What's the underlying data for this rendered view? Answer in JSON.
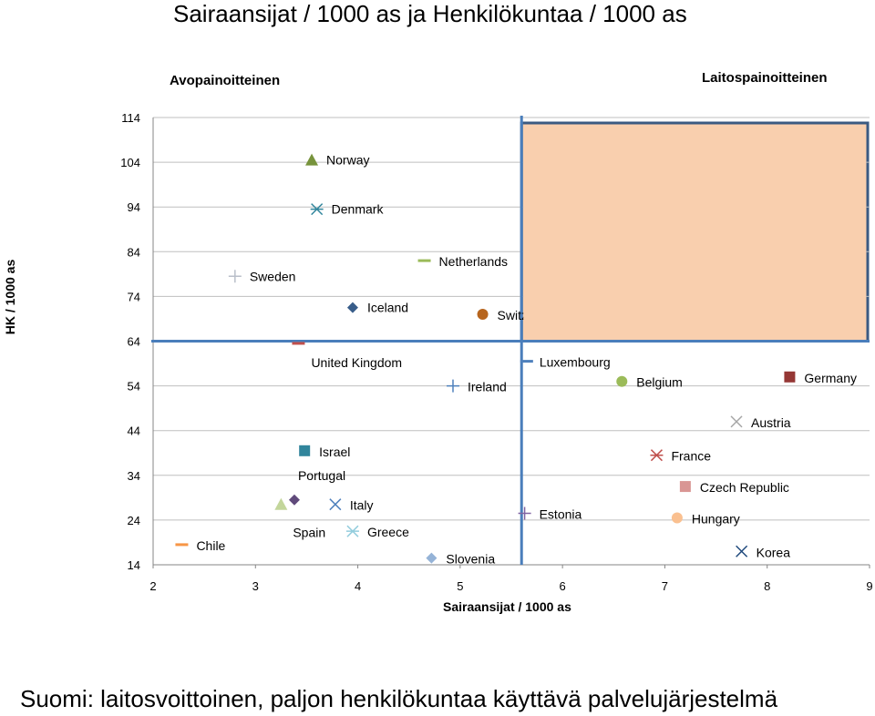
{
  "title": "Sairaansijat / 1000 as ja Henkilökuntaa / 1000 as",
  "footer": "Suomi: laitosvoittoinen, paljon henkilökuntaa käyttävä palvelujärjestelmä",
  "chart_data": {
    "type": "scatter",
    "xlabel": "Sairaansijat / 1000 as",
    "ylabel": "HK / 1000 as",
    "region_labels": {
      "left": "Avopainoitteinen",
      "right": "Laitospainoitteinen"
    },
    "xlim": [
      2,
      9
    ],
    "ylim": [
      14,
      114
    ],
    "x_ticks": [
      2,
      3,
      4,
      5,
      6,
      7,
      8,
      9
    ],
    "y_ticks": [
      14,
      24,
      34,
      44,
      54,
      64,
      74,
      84,
      94,
      104,
      114
    ],
    "grid": "horizontal",
    "divider": {
      "x": 5.6,
      "y": 64
    },
    "highlight_region": {
      "x": [
        5.6,
        9
      ],
      "y": [
        64,
        114
      ],
      "color": "#F9CFAE",
      "border": "#3B5A82"
    },
    "points": [
      {
        "label": "Norway",
        "x": 3.55,
        "y": 104.5,
        "marker": "triangle",
        "color": "#77933C"
      },
      {
        "label": "Denmark",
        "x": 3.6,
        "y": 93.5,
        "marker": "asterisk",
        "color": "#31859C"
      },
      {
        "label": "Netherlands",
        "x": 4.65,
        "y": 82,
        "marker": "dash",
        "color": "#9BBB59"
      },
      {
        "label": "Sweden",
        "x": 2.8,
        "y": 78.5,
        "marker": "plus",
        "color": "#B9BFC9"
      },
      {
        "label": "Iceland",
        "x": 3.95,
        "y": 71.5,
        "marker": "diamond",
        "color": "#385D8A"
      },
      {
        "label": "Switzerland",
        "x": 5.22,
        "y": 70,
        "marker": "circle",
        "color": "#B7651E"
      },
      {
        "label": "United Kingdom",
        "x": 3.42,
        "y": 63.5,
        "marker": "dash",
        "color": "#C0504D"
      },
      {
        "label": "Luxembourg",
        "x": 5.65,
        "y": 59.5,
        "marker": "dash",
        "color": "#4F81BD"
      },
      {
        "label": "Ireland",
        "x": 4.93,
        "y": 54,
        "marker": "plus",
        "color": "#4F81BD"
      },
      {
        "label": "Belgium",
        "x": 6.58,
        "y": 55,
        "marker": "circle",
        "color": "#9BBB59"
      },
      {
        "label": "Germany",
        "x": 8.22,
        "y": 56,
        "marker": "square",
        "color": "#953735"
      },
      {
        "label": "Austria",
        "x": 7.7,
        "y": 46,
        "marker": "x",
        "color": "#A6A6A6"
      },
      {
        "label": "Israel",
        "x": 3.48,
        "y": 39.5,
        "marker": "square",
        "color": "#31859C"
      },
      {
        "label": "France",
        "x": 6.92,
        "y": 38.5,
        "marker": "asterisk",
        "color": "#C0504D"
      },
      {
        "label": "Portugal",
        "x": 3.38,
        "y": 28.5,
        "marker": "diamond",
        "color": "#604A7B"
      },
      {
        "label": "Czech Republic",
        "x": 7.2,
        "y": 31.5,
        "marker": "square",
        "color": "#D99694"
      },
      {
        "label": "Italy",
        "x": 3.78,
        "y": 27.5,
        "marker": "x",
        "color": "#4F81BD"
      },
      {
        "label": "Spain",
        "x": 3.25,
        "y": 27.5,
        "marker": "triangle",
        "color": "#C3D69B"
      },
      {
        "label": "Estonia",
        "x": 5.63,
        "y": 25.5,
        "marker": "plus",
        "color": "#8064A2"
      },
      {
        "label": "Hungary",
        "x": 7.12,
        "y": 24.5,
        "marker": "circle",
        "color": "#FAC090"
      },
      {
        "label": "Greece",
        "x": 3.95,
        "y": 21.5,
        "marker": "asterisk",
        "color": "#93CDDD"
      },
      {
        "label": "Chile",
        "x": 2.28,
        "y": 18.5,
        "marker": "dash",
        "color": "#F79646"
      },
      {
        "label": "Slovenia",
        "x": 4.72,
        "y": 15.5,
        "marker": "diamond",
        "color": "#95B3D7"
      },
      {
        "label": "Korea",
        "x": 7.75,
        "y": 17,
        "marker": "x",
        "color": "#1F497D"
      }
    ]
  }
}
